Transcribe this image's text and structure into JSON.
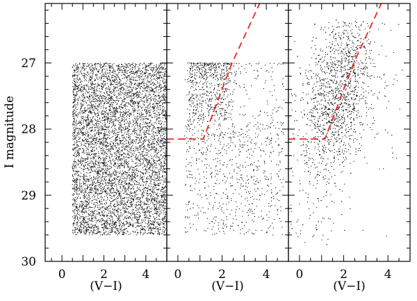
{
  "chart_data": {
    "type": "scatter",
    "ylabel": "I magnitude",
    "xlabel": "(V−I)",
    "y_axis": {
      "range": [
        30,
        26.1
      ],
      "ticks": [
        27,
        28,
        29,
        30
      ],
      "tick_labels": [
        "27",
        "28",
        "29",
        "30"
      ],
      "inverted": true
    },
    "panels": [
      {
        "id": "left",
        "description_of_points": "uniform random field",
        "xlim": [
          -0.8,
          5.0
        ],
        "x_ticks": [
          0,
          2,
          4
        ],
        "x_tick_labels": [
          "0",
          "2",
          "4"
        ],
        "point_region": {
          "color_range": [
            0.5,
            5.0
          ],
          "mag_range": [
            27.0,
            29.6
          ]
        },
        "n_points": 6500,
        "cut_line": null
      },
      {
        "id": "middle",
        "xlim": [
          -0.5,
          5.0
        ],
        "x_ticks": [
          0,
          2,
          4
        ],
        "x_tick_labels": [
          "0",
          "2",
          "4"
        ],
        "n_points": 1450,
        "cut_line": [
          [
            -0.5,
            28.15
          ],
          [
            1.15,
            28.15
          ],
          [
            2.45,
            27.0
          ],
          [
            3.7,
            26.1
          ]
        ]
      },
      {
        "id": "right",
        "xlim": [
          -0.5,
          5.0
        ],
        "x_ticks": [
          0,
          2,
          4
        ],
        "x_tick_labels": [
          "0",
          "2",
          "4"
        ],
        "n_points": 1850,
        "cut_line": [
          [
            -0.5,
            28.15
          ],
          [
            1.15,
            28.15
          ],
          [
            2.45,
            27.0
          ],
          [
            3.7,
            26.1
          ]
        ]
      }
    ]
  }
}
